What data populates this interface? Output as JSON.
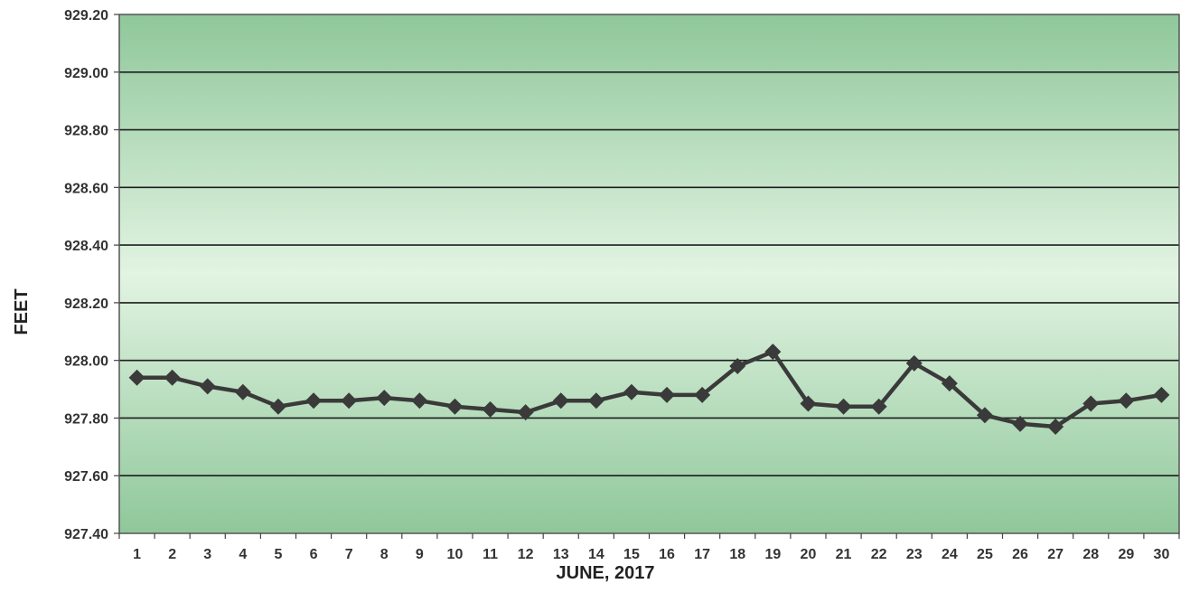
{
  "chart_data": {
    "type": "line",
    "title": "",
    "xlabel": "JUNE, 2017",
    "ylabel": "FEET",
    "ylim": [
      927.4,
      929.2
    ],
    "y_ticks": [
      "929.20",
      "929.00",
      "928.80",
      "928.60",
      "928.40",
      "928.20",
      "928.00",
      "927.80",
      "927.60",
      "927.40"
    ],
    "x": [
      1,
      2,
      3,
      4,
      5,
      6,
      7,
      8,
      9,
      10,
      11,
      12,
      13,
      14,
      15,
      16,
      17,
      18,
      19,
      20,
      21,
      22,
      23,
      24,
      25,
      26,
      27,
      28,
      29,
      30
    ],
    "series": [
      {
        "values": [
          927.94,
          927.94,
          927.91,
          927.89,
          927.84,
          927.86,
          927.86,
          927.87,
          927.86,
          927.84,
          927.83,
          927.82,
          927.86,
          927.86,
          927.89,
          927.88,
          927.88,
          927.98,
          928.03,
          927.85,
          927.84,
          927.84,
          927.99,
          927.92,
          927.81,
          927.78,
          927.77,
          927.85,
          927.86,
          927.88
        ]
      }
    ],
    "grid": true,
    "legend": "none",
    "colors": {
      "line": "#3a3a3a",
      "marker": "#3a3a3a",
      "band_light": "#e2f4e2",
      "band_dark": "#8fc79a",
      "gridline": "#1e1e1e"
    }
  }
}
